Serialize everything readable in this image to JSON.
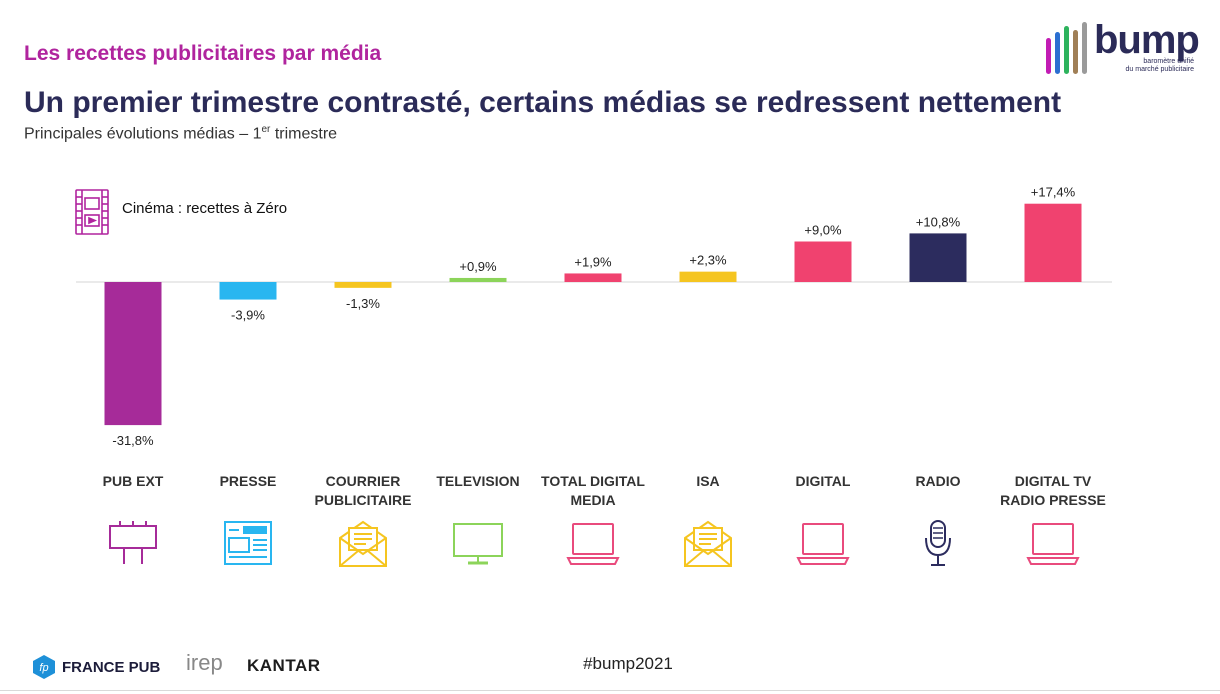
{
  "header": {
    "kicker": "Les recettes publicitaires par média",
    "title": "Un premier trimestre contrasté, certains médias se redressent nettement",
    "subtitle_main": "Principales évolutions médias – 1",
    "subtitle_sup": "er",
    "subtitle_tail": " trimestre"
  },
  "logo": {
    "word": "bump",
    "tagline_1": "baromètre unifié",
    "tagline_2": "du marché publicitaire",
    "bar_colors": [
      "#c21cb4",
      "#2b6fd1",
      "#2db35d",
      "#a07f56",
      "#9a9a9a"
    ]
  },
  "note": {
    "text": "Cinéma : recettes à Zéro",
    "icon": "film-icon"
  },
  "chart_data": {
    "type": "bar",
    "title": "",
    "xlabel": "",
    "ylabel": "",
    "unit": "%",
    "ylim": [
      -31.8,
      17.4
    ],
    "grid": false,
    "legend": "none",
    "categories": [
      "PUB EXT",
      "PRESSE",
      "COURRIER PUBLICITAIRE",
      "TELEVISION",
      "TOTAL DIGITAL MEDIA",
      "ISA",
      "DIGITAL",
      "RADIO",
      "DIGITAL TV RADIO PRESSE"
    ],
    "category_lines": [
      [
        "PUB EXT"
      ],
      [
        "PRESSE"
      ],
      [
        "COURRIER",
        "PUBLICITAIRE"
      ],
      [
        "TELEVISION"
      ],
      [
        "TOTAL DIGITAL",
        "MEDIA"
      ],
      [
        "ISA"
      ],
      [
        "DIGITAL"
      ],
      [
        "RADIO"
      ],
      [
        "DIGITAL TV",
        "RADIO PRESSE"
      ]
    ],
    "values": [
      -31.8,
      -3.9,
      -1.3,
      0.9,
      1.9,
      2.3,
      9.0,
      10.8,
      17.4
    ],
    "labels": [
      "-31,8%",
      "-3,9%",
      "-1,3%",
      "+0,9%",
      "+1,9%",
      "+2,3%",
      "+9,0%",
      "+10,8%",
      "+17,4%"
    ],
    "colors": [
      "#a62b99",
      "#29b6f0",
      "#f5c520",
      "#8cd45a",
      "#f0426f",
      "#f5c520",
      "#f0426f",
      "#2c2c5e",
      "#f0426f"
    ],
    "icons": [
      "billboard-icon",
      "newspaper-icon",
      "mail-envelope-icon",
      "television-icon",
      "laptop-icon",
      "mail-envelope-icon",
      "laptop-icon",
      "microphone-icon",
      "laptop-icon"
    ],
    "icon_colors": [
      "#a62b99",
      "#29b6f0",
      "#f5c520",
      "#8cd45a",
      "#e94b7d",
      "#f5c520",
      "#e94b7d",
      "#2c2c5e",
      "#e94b7d"
    ]
  },
  "footer": {
    "hashtag": "#bump2021",
    "partners": [
      "FRANCE PUB",
      "irep",
      "KANTAR"
    ]
  }
}
